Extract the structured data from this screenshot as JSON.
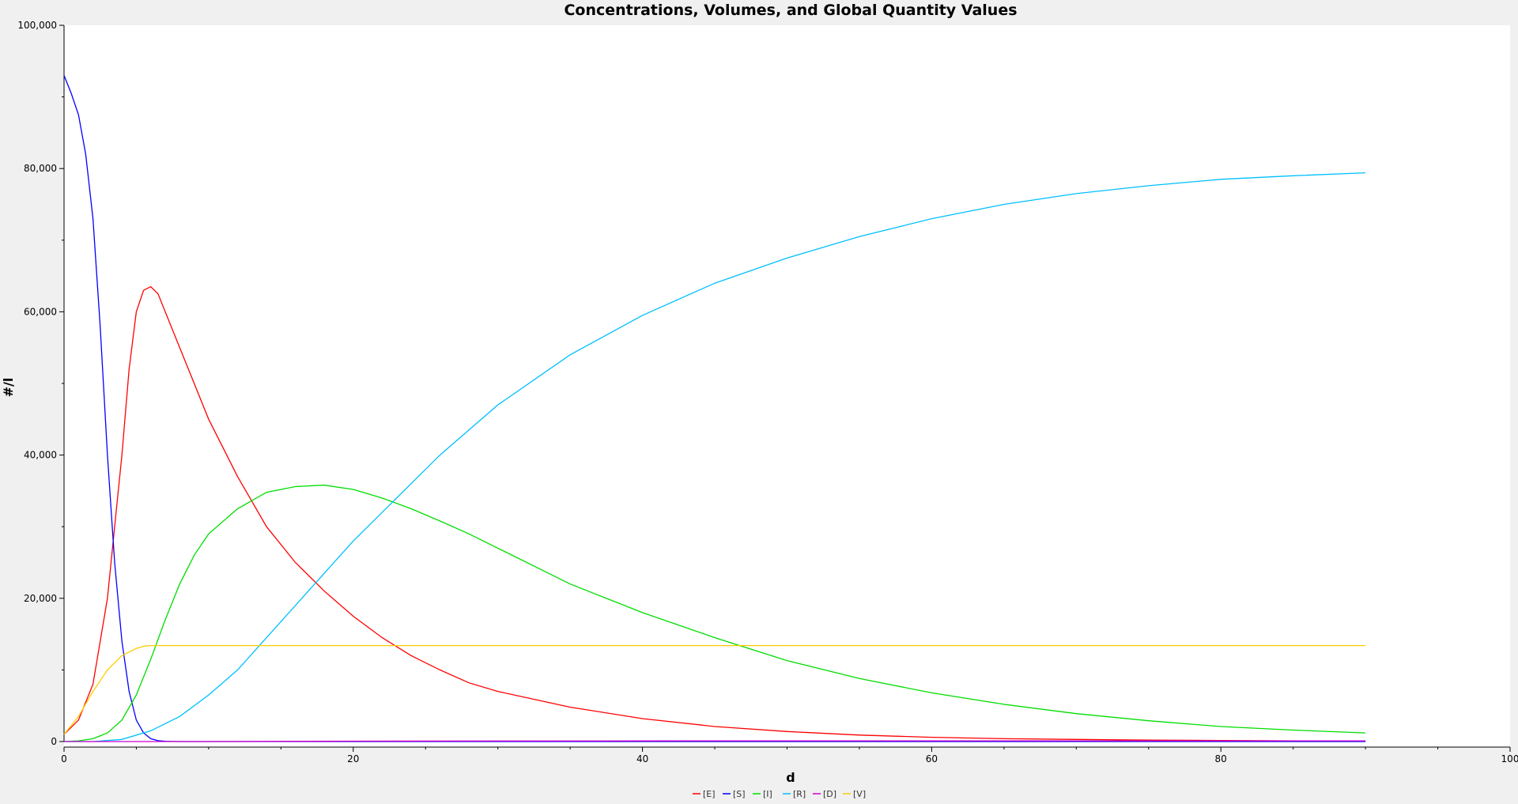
{
  "chart_data": {
    "type": "line",
    "title": "Concentrations, Volumes, and Global Quantity Values",
    "xlabel": "d",
    "ylabel": "#/l",
    "xlim": [
      0,
      100
    ],
    "ylim": [
      0,
      100000
    ],
    "xticks": [
      0,
      20,
      40,
      60,
      80,
      100
    ],
    "yticks": [
      0,
      20000,
      40000,
      60000,
      80000,
      100000
    ],
    "xtick_labels": [
      "0",
      "20",
      "40",
      "60",
      "80",
      "100"
    ],
    "ytick_labels": [
      "0",
      "20,000",
      "40,000",
      "60,000",
      "80,000",
      "100,000"
    ],
    "grid": false,
    "legend_position": "bottom",
    "series": [
      {
        "name": "[E]",
        "color": "#ff0000",
        "x": [
          0,
          1,
          2,
          3,
          3.5,
          4,
          4.5,
          5,
          5.5,
          6,
          6.5,
          7,
          8,
          9,
          10,
          12,
          14,
          16,
          18,
          20,
          22,
          24,
          26,
          28,
          30,
          35,
          40,
          45,
          50,
          55,
          60,
          65,
          70,
          75,
          80,
          85,
          90
        ],
        "y": [
          1000,
          3000,
          8000,
          20000,
          30000,
          40000,
          52000,
          60000,
          63000,
          63500,
          62500,
          60000,
          55000,
          50000,
          45000,
          37000,
          30000,
          25000,
          21000,
          17500,
          14500,
          12000,
          10000,
          8200,
          7000,
          4800,
          3200,
          2100,
          1400,
          900,
          600,
          400,
          300,
          200,
          150,
          100,
          80
        ]
      },
      {
        "name": "[S]",
        "color": "#0000ff",
        "x": [
          0,
          0.5,
          1,
          1.5,
          2,
          2.5,
          3,
          3.5,
          4,
          4.5,
          5,
          5.5,
          6,
          6.5,
          7,
          7.5,
          8,
          10,
          20,
          40,
          60,
          80,
          90
        ],
        "y": [
          93000,
          90500,
          87500,
          82000,
          73000,
          58000,
          40000,
          25000,
          14000,
          7000,
          3000,
          1200,
          400,
          120,
          40,
          10,
          0,
          0,
          0,
          0,
          0,
          0,
          0
        ]
      },
      {
        "name": "[I]",
        "color": "#00dd00",
        "x": [
          0,
          1,
          2,
          3,
          4,
          5,
          6,
          7,
          8,
          9,
          10,
          12,
          14,
          16,
          18,
          20,
          22,
          24,
          26,
          28,
          30,
          35,
          40,
          45,
          50,
          55,
          60,
          65,
          70,
          75,
          80,
          85,
          90
        ],
        "y": [
          0,
          100,
          400,
          1200,
          3000,
          6500,
          11500,
          17000,
          22000,
          26000,
          29000,
          32500,
          34800,
          35600,
          35800,
          35200,
          34000,
          32500,
          30800,
          29000,
          27000,
          22000,
          18000,
          14500,
          11300,
          8800,
          6800,
          5200,
          3900,
          2900,
          2100,
          1600,
          1200
        ]
      },
      {
        "name": "[R]",
        "color": "#00bfff",
        "x": [
          0,
          2,
          4,
          6,
          8,
          10,
          12,
          14,
          16,
          18,
          20,
          22,
          24,
          26,
          28,
          30,
          35,
          40,
          45,
          50,
          55,
          60,
          65,
          70,
          75,
          80,
          85,
          90
        ],
        "y": [
          0,
          0,
          300,
          1500,
          3500,
          6500,
          10000,
          14500,
          19000,
          23500,
          28000,
          32000,
          36000,
          40000,
          43500,
          47000,
          54000,
          59500,
          64000,
          67500,
          70500,
          73000,
          75000,
          76500,
          77600,
          78500,
          79000,
          79400
        ]
      },
      {
        "name": "[D]",
        "color": "#cc00cc",
        "x": [
          0,
          10,
          20,
          30,
          40,
          50,
          60,
          70,
          80,
          90
        ],
        "y": [
          0,
          0,
          50,
          80,
          90,
          100,
          100,
          100,
          100,
          100
        ]
      },
      {
        "name": "[V]",
        "color": "#ffcc00",
        "x": [
          0,
          1,
          2,
          3,
          4,
          5,
          5.5,
          6,
          7,
          10,
          20,
          40,
          60,
          80,
          90
        ],
        "y": [
          1000,
          3500,
          7000,
          10000,
          12000,
          13000,
          13300,
          13400,
          13400,
          13400,
          13400,
          13400,
          13400,
          13400,
          13400
        ]
      }
    ]
  }
}
